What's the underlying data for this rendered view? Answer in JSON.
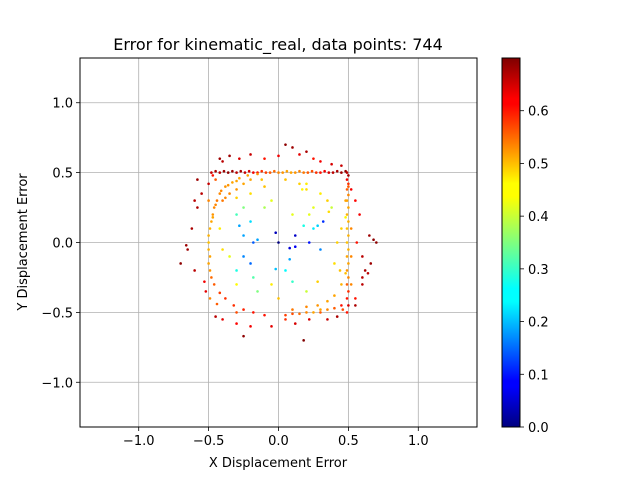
{
  "chart_data": {
    "type": "scatter",
    "title": "Error for kinematic_real, data points: 744",
    "xlabel": "X Displacement Error",
    "ylabel": "Y Displacement Error",
    "xlim": [
      -1.42,
      1.42
    ],
    "ylim": [
      -1.32,
      1.32
    ],
    "xticks": [
      -1.0,
      -0.5,
      0.0,
      0.5,
      1.0
    ],
    "yticks": [
      -1.0,
      -0.5,
      0.0,
      0.5,
      1.0
    ],
    "xtick_labels": [
      "−1.0",
      "−0.5",
      "0.0",
      "0.5",
      "1.0"
    ],
    "ytick_labels": [
      "−1.0",
      "−0.5",
      "0.0",
      "0.5",
      "1.0"
    ],
    "grid": true,
    "colorbar": {
      "colormap": "jet",
      "min": 0.0,
      "max": 0.7,
      "ticks": [
        0.0,
        0.1,
        0.2,
        0.3,
        0.4,
        0.5,
        0.6
      ],
      "tick_labels": [
        "0.0",
        "0.1",
        "0.2",
        "0.3",
        "0.4",
        "0.5",
        "0.6"
      ]
    },
    "point_count": 744,
    "points": [
      [
        -0.48,
        0.5
      ],
      [
        -0.45,
        0.51
      ],
      [
        -0.42,
        0.5
      ],
      [
        -0.39,
        0.51
      ],
      [
        -0.36,
        0.5
      ],
      [
        -0.33,
        0.51
      ],
      [
        -0.3,
        0.5
      ],
      [
        -0.27,
        0.51
      ],
      [
        -0.24,
        0.5
      ],
      [
        -0.21,
        0.51
      ],
      [
        -0.18,
        0.5
      ],
      [
        -0.15,
        0.5
      ],
      [
        -0.12,
        0.51
      ],
      [
        -0.09,
        0.5
      ],
      [
        -0.06,
        0.5
      ],
      [
        -0.03,
        0.51
      ],
      [
        0.0,
        0.5
      ],
      [
        0.03,
        0.5
      ],
      [
        0.06,
        0.51
      ],
      [
        0.09,
        0.5
      ],
      [
        0.12,
        0.5
      ],
      [
        0.15,
        0.51
      ],
      [
        0.18,
        0.5
      ],
      [
        0.21,
        0.5
      ],
      [
        0.24,
        0.51
      ],
      [
        0.27,
        0.5
      ],
      [
        0.3,
        0.5
      ],
      [
        0.33,
        0.51
      ],
      [
        0.36,
        0.5
      ],
      [
        0.39,
        0.5
      ],
      [
        0.42,
        0.51
      ],
      [
        0.45,
        0.5
      ],
      [
        0.48,
        0.51
      ],
      [
        0.5,
        0.48
      ],
      [
        0.49,
        0.45
      ],
      [
        0.5,
        0.42
      ],
      [
        0.49,
        0.38
      ],
      [
        0.5,
        0.34
      ],
      [
        0.49,
        0.3
      ],
      [
        0.5,
        0.25
      ],
      [
        0.49,
        0.2
      ],
      [
        0.5,
        0.15
      ],
      [
        0.49,
        0.1
      ],
      [
        0.5,
        0.05
      ],
      [
        0.49,
        0.0
      ],
      [
        0.5,
        -0.05
      ],
      [
        0.49,
        -0.1
      ],
      [
        0.5,
        -0.15
      ],
      [
        0.49,
        -0.2
      ],
      [
        0.5,
        -0.25
      ],
      [
        0.49,
        -0.3
      ],
      [
        0.5,
        -0.35
      ],
      [
        0.49,
        -0.4
      ],
      [
        0.5,
        -0.45
      ],
      [
        0.45,
        -0.45
      ],
      [
        0.4,
        -0.47
      ],
      [
        0.35,
        -0.48
      ],
      [
        0.3,
        -0.48
      ],
      [
        0.25,
        -0.5
      ],
      [
        0.2,
        -0.5
      ],
      [
        0.15,
        -0.51
      ],
      [
        0.1,
        -0.51
      ],
      [
        0.05,
        -0.52
      ],
      [
        -0.5,
        0.0
      ],
      [
        -0.5,
        -0.05
      ],
      [
        -0.49,
        -0.1
      ],
      [
        -0.5,
        -0.15
      ],
      [
        -0.49,
        -0.2
      ],
      [
        -0.5,
        0.05
      ],
      [
        -0.49,
        0.1
      ],
      [
        -0.48,
        0.15
      ],
      [
        -0.47,
        0.2
      ],
      [
        -0.46,
        0.25
      ],
      [
        -0.44,
        0.3
      ],
      [
        -0.42,
        0.35
      ],
      [
        -0.38,
        0.4
      ],
      [
        -0.33,
        0.43
      ],
      [
        -0.28,
        0.46
      ],
      [
        -0.22,
        0.48
      ],
      [
        -0.15,
        0.49
      ],
      [
        -0.47,
        0.18
      ],
      [
        -0.45,
        0.27
      ],
      [
        -0.41,
        0.37
      ],
      [
        -0.36,
        0.41
      ],
      [
        -0.3,
        0.44
      ],
      [
        -0.48,
        -0.25
      ],
      [
        -0.46,
        -0.3
      ],
      [
        -0.42,
        -0.36
      ],
      [
        -0.38,
        -0.4
      ],
      [
        -0.32,
        -0.45
      ],
      [
        -0.25,
        -0.48
      ],
      [
        -0.18,
        -0.5
      ],
      [
        -0.1,
        -0.52
      ],
      [
        -0.6,
        0.3
      ],
      [
        -0.62,
        0.1
      ],
      [
        -0.65,
        -0.05
      ],
      [
        -0.6,
        -0.2
      ],
      [
        -0.55,
        0.35
      ],
      [
        -0.58,
        0.45
      ],
      [
        -0.52,
        -0.35
      ],
      [
        -0.5,
        0.42
      ],
      [
        -0.53,
        -0.28
      ],
      [
        -0.45,
        -0.53
      ],
      [
        -0.4,
        -0.55
      ],
      [
        -0.3,
        -0.58
      ],
      [
        -0.2,
        -0.6
      ],
      [
        -0.05,
        -0.6
      ],
      [
        0.12,
        -0.58
      ],
      [
        0.22,
        -0.55
      ],
      [
        0.35,
        -0.55
      ],
      [
        0.42,
        -0.53
      ],
      [
        0.55,
        -0.4
      ],
      [
        0.6,
        -0.3
      ],
      [
        0.62,
        -0.2
      ],
      [
        0.66,
        -0.15
      ],
      [
        0.58,
        0.2
      ],
      [
        0.55,
        0.3
      ],
      [
        0.52,
        0.38
      ],
      [
        0.6,
        -0.1
      ],
      [
        0.7,
        0.0
      ],
      [
        0.65,
        0.05
      ],
      [
        0.56,
        0.0
      ],
      [
        -0.28,
        0.6
      ],
      [
        -0.2,
        0.63
      ],
      [
        -0.1,
        0.6
      ],
      [
        0.0,
        0.62
      ],
      [
        0.1,
        0.68
      ],
      [
        0.2,
        0.65
      ],
      [
        0.3,
        0.58
      ],
      [
        0.38,
        0.56
      ],
      [
        0.45,
        0.55
      ],
      [
        -0.4,
        0.58
      ],
      [
        -0.35,
        0.62
      ],
      [
        0.05,
        0.7
      ],
      [
        0.15,
        0.63
      ],
      [
        0.25,
        0.6
      ],
      [
        -0.58,
        0.25
      ],
      [
        -0.66,
        -0.02
      ],
      [
        0.6,
        -0.25
      ],
      [
        0.64,
        -0.22
      ],
      [
        0.68,
        0.02
      ],
      [
        0.55,
        -0.45
      ],
      [
        -0.25,
        -0.67
      ],
      [
        0.18,
        -0.7
      ],
      [
        -0.7,
        -0.15
      ],
      [
        -0.42,
        0.6
      ],
      [
        0.48,
        0.18
      ],
      [
        -0.35,
        0.35
      ],
      [
        -0.3,
        0.38
      ],
      [
        -0.25,
        0.42
      ],
      [
        -0.2,
        0.45
      ],
      [
        -0.4,
        0.3
      ],
      [
        -0.38,
        0.32
      ],
      [
        0.1,
        -0.48
      ],
      [
        0.2,
        -0.46
      ],
      [
        0.28,
        -0.45
      ],
      [
        0.35,
        -0.42
      ],
      [
        0.4,
        -0.38
      ],
      [
        0.45,
        -0.3
      ],
      [
        0.48,
        -0.22
      ],
      [
        0.48,
        0.3
      ],
      [
        0.2,
        0.42
      ],
      [
        0.17,
        0.38
      ],
      [
        0.38,
        0.25
      ],
      [
        0.25,
        0.1
      ],
      [
        -0.35,
        -0.1
      ],
      [
        -0.4,
        -0.05
      ],
      [
        -0.42,
        0.1
      ],
      [
        -0.3,
        0.2
      ],
      [
        -0.3,
        0.32
      ],
      [
        0.42,
        0.0
      ],
      [
        0.45,
        0.1
      ],
      [
        0.4,
        -0.15
      ],
      [
        0.44,
        -0.2
      ],
      [
        -0.2,
        0.35
      ],
      [
        -0.1,
        0.4
      ],
      [
        0.05,
        0.45
      ],
      [
        0.15,
        0.42
      ],
      [
        -0.25,
        0.05
      ],
      [
        -0.18,
        0.0
      ],
      [
        0.22,
        0.0
      ],
      [
        0.3,
        -0.05
      ],
      [
        0.1,
        0.2
      ],
      [
        -0.1,
        0.25
      ],
      [
        -0.05,
        -0.3
      ],
      [
        0.0,
        -0.4
      ],
      [
        0.18,
        0.12
      ],
      [
        -0.2,
        -0.15
      ],
      [
        0.28,
        0.12
      ],
      [
        0.32,
        0.15
      ],
      [
        0.05,
        -0.2
      ],
      [
        0.2,
        -0.35
      ],
      [
        -0.15,
        -0.35
      ],
      [
        -0.2,
        0.15
      ],
      [
        -0.28,
        0.12
      ],
      [
        -0.3,
        -0.2
      ],
      [
        -0.18,
        -0.25
      ],
      [
        0.12,
        0.05
      ],
      [
        0.22,
        0.2
      ],
      [
        0.35,
        0.3
      ],
      [
        0.36,
        0.22
      ],
      [
        -0.05,
        0.3
      ],
      [
        -0.25,
        0.25
      ],
      [
        0.08,
        -0.12
      ],
      [
        0.0,
        0.0
      ],
      [
        -0.02,
        0.07
      ],
      [
        0.08,
        -0.04
      ],
      [
        0.12,
        -0.03
      ],
      [
        -0.15,
        0.02
      ],
      [
        -0.25,
        -0.1
      ],
      [
        -0.3,
        -0.3
      ],
      [
        0.28,
        -0.28
      ],
      [
        -0.02,
        -0.19
      ],
      [
        0.1,
        -0.28
      ],
      [
        0.25,
        0.25
      ],
      [
        0.3,
        0.35
      ],
      [
        0.2,
        0.38
      ],
      [
        -0.12,
        0.45
      ],
      [
        -0.45,
        0.45
      ],
      [
        -0.5,
        0.3
      ],
      [
        0.5,
        0.4
      ],
      [
        0.52,
        0.1
      ],
      [
        0.52,
        -0.1
      ],
      [
        0.52,
        -0.3
      ],
      [
        0.46,
        -0.48
      ],
      [
        -0.44,
        -0.44
      ],
      [
        -0.49,
        -0.4
      ],
      [
        -0.47,
        0.48
      ],
      [
        0.49,
        0.5
      ],
      [
        0.49,
        -0.5
      ],
      [
        -0.3,
        -0.5
      ],
      [
        0.3,
        -0.5
      ],
      [
        0.05,
        -0.55
      ]
    ],
    "values": [
      0.65,
      0.67,
      0.66,
      0.68,
      0.69,
      0.68,
      0.66,
      0.67,
      0.65,
      0.64,
      0.62,
      0.6,
      0.58,
      0.57,
      0.55,
      0.54,
      0.52,
      0.51,
      0.5,
      0.5,
      0.51,
      0.52,
      0.53,
      0.55,
      0.56,
      0.58,
      0.6,
      0.62,
      0.64,
      0.66,
      0.67,
      0.68,
      0.69,
      0.68,
      0.62,
      0.58,
      0.55,
      0.52,
      0.5,
      0.5,
      0.49,
      0.49,
      0.48,
      0.49,
      0.48,
      0.49,
      0.5,
      0.5,
      0.51,
      0.52,
      0.55,
      0.58,
      0.6,
      0.64,
      0.6,
      0.55,
      0.52,
      0.5,
      0.5,
      0.52,
      0.54,
      0.56,
      0.57,
      0.48,
      0.49,
      0.5,
      0.5,
      0.51,
      0.49,
      0.49,
      0.5,
      0.51,
      0.52,
      0.53,
      0.52,
      0.51,
      0.5,
      0.5,
      0.5,
      0.51,
      0.5,
      0.52,
      0.52,
      0.51,
      0.5,
      0.54,
      0.55,
      0.57,
      0.58,
      0.58,
      0.59,
      0.6,
      0.6,
      0.66,
      0.67,
      0.68,
      0.66,
      0.66,
      0.68,
      0.63,
      0.65,
      0.62,
      0.66,
      0.63,
      0.61,
      0.62,
      0.63,
      0.64,
      0.64,
      0.65,
      0.67,
      0.6,
      0.66,
      0.67,
      0.68,
      0.62,
      0.61,
      0.62,
      0.66,
      0.69,
      0.68,
      0.6,
      0.64,
      0.65,
      0.6,
      0.62,
      0.68,
      0.67,
      0.62,
      0.64,
      0.65,
      0.66,
      0.68,
      0.69,
      0.63,
      0.6,
      0.67,
      0.68,
      0.66,
      0.66,
      0.69,
      0.67,
      0.69,
      0.7,
      0.69,
      0.68,
      0.44,
      0.52,
      0.51,
      0.5,
      0.5,
      0.53,
      0.52,
      0.53,
      0.52,
      0.51,
      0.5,
      0.5,
      0.49,
      0.48,
      0.5,
      0.45,
      0.44,
      0.4,
      0.25,
      0.42,
      0.46,
      0.45,
      0.31,
      0.47,
      0.47,
      0.47,
      0.46,
      0.48,
      0.46,
      0.48,
      0.48,
      0.47,
      0.2,
      0.15,
      0.1,
      0.18,
      0.42,
      0.38,
      0.45,
      0.48,
      0.28,
      0.16,
      0.23,
      0.12,
      0.26,
      0.4,
      0.35,
      0.24,
      0.2,
      0.28,
      0.32,
      0.05,
      0.42,
      0.47,
      0.46,
      0.42,
      0.35,
      0.2,
      0.0,
      0.04,
      0.06,
      0.08,
      0.2,
      0.18,
      0.44,
      0.47,
      0.22,
      0.3,
      0.42,
      0.45,
      0.46,
      0.48,
      0.55,
      0.52,
      0.55,
      0.52,
      0.52,
      0.52,
      0.56,
      0.55,
      0.52,
      0.6,
      0.66,
      0.6,
      0.56,
      0.55,
      0.58
    ]
  }
}
